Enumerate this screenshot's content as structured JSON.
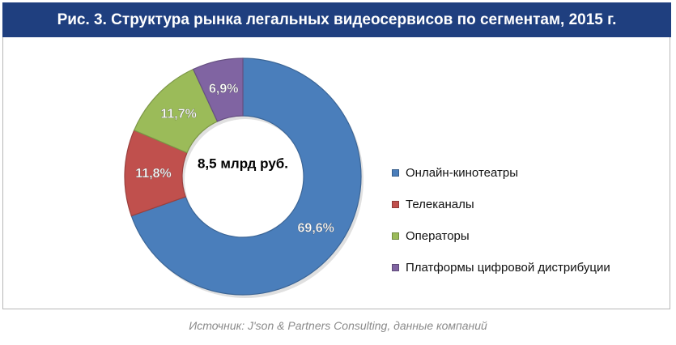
{
  "title": "Рис. 3. Структура рынка легальных видеосервисов по сегментам, 2015 г.",
  "source": "Источник: J'son & Partners Consulting, данные компаний",
  "chart_data": {
    "type": "pie",
    "style": "donut",
    "center_label": "8,5 млрд руб.",
    "categories": [
      "Онлайн-кинотеатры",
      "Телеканалы",
      "Операторы",
      "Платформы цифровой дистрибуции"
    ],
    "values": [
      69.6,
      11.8,
      11.7,
      6.9
    ],
    "data_labels": [
      "69,6%",
      "11,8%",
      "11,7%",
      "6,9%"
    ],
    "colors": [
      "#4a7ebb",
      "#c0504d",
      "#9bbb59",
      "#8064a2"
    ],
    "legend_position": "right"
  }
}
